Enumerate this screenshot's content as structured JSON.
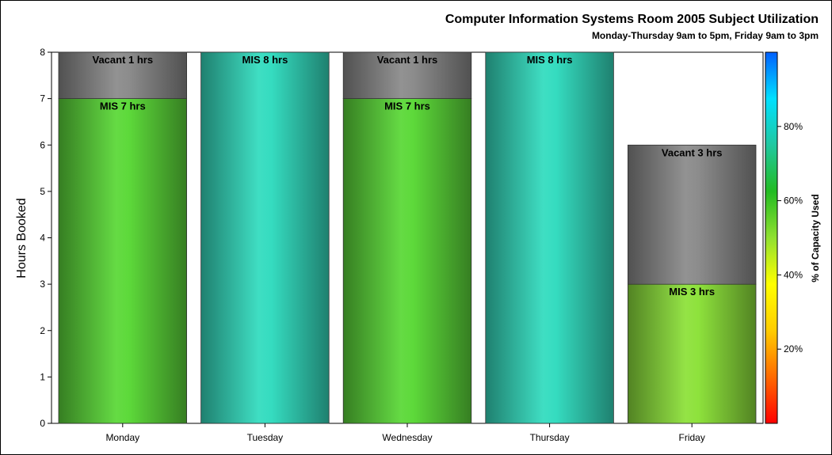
{
  "chart_data": {
    "type": "bar",
    "stacked": true,
    "title": "Computer Information Systems Room 2005 Subject Utilization",
    "subtitle": "Monday-Thursday 9am to 5pm, Friday 9am to 3pm",
    "ylabel": "Hours Booked",
    "xlabel": "",
    "ylim": [
      0,
      8
    ],
    "yticks": [
      0,
      1,
      2,
      3,
      4,
      5,
      6,
      7,
      8
    ],
    "categories": [
      "Monday",
      "Tuesday",
      "Wednesday",
      "Thursday",
      "Friday"
    ],
    "bars": [
      {
        "day": "Monday",
        "capacity_pct": 87.5,
        "segments": [
          {
            "name": "MIS",
            "hours": 7,
            "label": "MIS 7 hrs"
          },
          {
            "name": "Vacant",
            "hours": 1,
            "label": "Vacant 1 hrs"
          }
        ]
      },
      {
        "day": "Tuesday",
        "capacity_pct": 100,
        "segments": [
          {
            "name": "MIS",
            "hours": 8,
            "label": "MIS 8 hrs"
          }
        ]
      },
      {
        "day": "Wednesday",
        "capacity_pct": 87.5,
        "segments": [
          {
            "name": "MIS",
            "hours": 7,
            "label": "MIS 7 hrs"
          },
          {
            "name": "Vacant",
            "hours": 1,
            "label": "Vacant 1 hrs"
          }
        ]
      },
      {
        "day": "Thursday",
        "capacity_pct": 100,
        "segments": [
          {
            "name": "MIS",
            "hours": 8,
            "label": "MIS 8 hrs"
          }
        ]
      },
      {
        "day": "Friday",
        "capacity_pct": 50,
        "segments": [
          {
            "name": "MIS",
            "hours": 3,
            "label": "MIS 3 hrs"
          },
          {
            "name": "Vacant",
            "hours": 3,
            "label": "Vacant 3 hrs"
          }
        ]
      }
    ],
    "colorbar": {
      "label": "% of Capacity Used",
      "range": [
        0,
        100
      ],
      "ticks": [
        20,
        40,
        60,
        80
      ],
      "tick_labels": [
        "20%",
        "40%",
        "60%",
        "80%"
      ],
      "stops": [
        "#ff0000",
        "#ff6a00",
        "#ffcc00",
        "#ffff00",
        "#90e030",
        "#22bb22",
        "#20c8a0",
        "#00e0ff",
        "#0060ff"
      ]
    },
    "colors": {
      "Monday": "#5dd93a",
      "Tuesday": "#35dcc0",
      "Wednesday": "#5dd93a",
      "Thursday": "#35dcc0",
      "Friday": "#8ee23c",
      "Vacant": "#8c8c8c"
    },
    "grid": false,
    "legend": "right colorbar"
  }
}
